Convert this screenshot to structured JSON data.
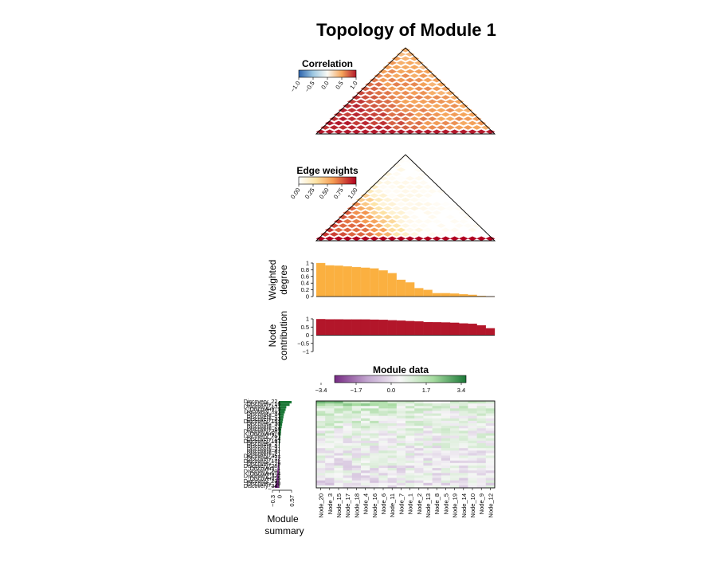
{
  "chart_data": {
    "type": "heatmap",
    "title": "Topology of Module 1",
    "nodes": [
      "Node_20",
      "Node_3",
      "Node_15",
      "Node_17",
      "Node_18",
      "Node_4",
      "Node_16",
      "Node_6",
      "Node_11",
      "Node_7",
      "Node_1",
      "Node_2",
      "Node_13",
      "Node_8",
      "Node_5",
      "Node_19",
      "Node_14",
      "Node_10",
      "Node_9",
      "Node_12"
    ],
    "correlation_legend": {
      "title": "Correlation",
      "ticks": [
        "−1.0",
        "−0.5",
        "0.0",
        "0.5",
        "1.0"
      ],
      "range": [
        -1,
        1
      ]
    },
    "edge_weights_legend": {
      "title": "Edge weights",
      "ticks": [
        "0.00",
        "0.25",
        "0.50",
        "0.75",
        "1.00"
      ],
      "range": [
        0,
        1
      ]
    },
    "weighted_degree": {
      "ylabel": [
        "Weighted",
        "degree"
      ],
      "ticks": [
        "0",
        "0.2",
        "0.4",
        "0.6",
        "0.8",
        "1"
      ],
      "ylim": [
        0,
        1
      ],
      "values": [
        1.0,
        0.93,
        0.92,
        0.9,
        0.88,
        0.86,
        0.84,
        0.78,
        0.7,
        0.5,
        0.42,
        0.25,
        0.2,
        0.1,
        0.1,
        0.09,
        0.07,
        0.05,
        0.02,
        0.0
      ]
    },
    "node_contribution": {
      "ylabel": [
        "Node",
        "contribution"
      ],
      "ticks": [
        "1",
        "0.5",
        "0",
        "−0.5",
        "−1"
      ],
      "ylim": [
        -1,
        1
      ],
      "values": [
        0.98,
        0.97,
        0.97,
        0.96,
        0.96,
        0.96,
        0.95,
        0.94,
        0.91,
        0.89,
        0.86,
        0.84,
        0.8,
        0.79,
        0.78,
        0.76,
        0.72,
        0.7,
        0.6,
        0.42
      ]
    },
    "module_data_legend": {
      "title": "Module data",
      "ticks": [
        "−3.4",
        "−1.7",
        "0.0",
        "1.7",
        "3.4"
      ],
      "range": [
        -3.4,
        3.4
      ]
    },
    "samples": [
      "Discovery_22",
      "Discovery_16",
      "Discovery_13",
      "Discovery_9",
      "Discovery_11",
      "Discovery_24",
      "Discovery_7",
      "Discovery_33",
      "Discovery_15",
      "Discovery_30",
      "Discovery_2",
      "Discovery_18",
      "Discovery_28",
      "Discovery_6",
      "Discovery_25",
      "Discovery_14",
      "Discovery_19",
      "Discovery_27",
      "Discovery_3",
      "Discovery_31",
      "Discovery_8",
      "Discovery_21",
      "Discovery_35",
      "Discovery_12",
      "Discovery_17",
      "Discovery_29",
      "Discovery_26",
      "Discovery_1",
      "Discovery_20",
      "Discovery_4",
      "Discovery_32",
      "Discovery_5",
      "Discovery_23",
      "Discovery_10",
      "Discovery_34"
    ],
    "module_summary": {
      "xlabel": [
        "Module",
        "summary"
      ],
      "ticks": [
        "−0.3",
        "0",
        "0.57"
      ],
      "xlim": [
        -0.3,
        0.57
      ],
      "values": [
        0.57,
        0.48,
        0.33,
        0.3,
        0.26,
        0.22,
        0.2,
        0.18,
        0.16,
        0.14,
        0.12,
        0.1,
        0.09,
        0.08,
        0.06,
        0.05,
        0.04,
        0.03,
        0.02,
        0.01,
        0.0,
        -0.01,
        -0.02,
        -0.03,
        -0.04,
        -0.05,
        -0.06,
        -0.07,
        -0.08,
        -0.09,
        -0.1,
        -0.12,
        -0.14,
        -0.16,
        -0.2
      ]
    }
  }
}
